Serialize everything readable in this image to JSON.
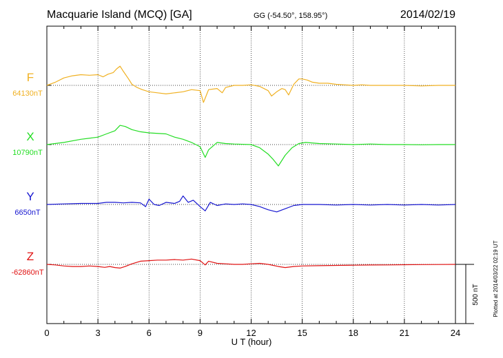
{
  "header": {
    "title": "Macquarie Island (MCQ)  [GA]",
    "coords": "GG (-54.50°, 158.95°)",
    "date": "2014/02/19"
  },
  "side_note": "Plotted at 2014/03/22 02:19 UT",
  "scale_bar": {
    "label": "500 nT",
    "value_nT": 500
  },
  "colors": {
    "F": "#f0b020",
    "X": "#22dd22",
    "Y": "#1515d0",
    "Z": "#e01010"
  },
  "chart_data": {
    "type": "line",
    "xlabel": "U T (hour)",
    "xlim": [
      0,
      24
    ],
    "x_ticks": [
      "0",
      "3",
      "6",
      "9",
      "12",
      "15",
      "18",
      "21",
      "24"
    ],
    "grid": "dotted baseline per series",
    "series": [
      {
        "name": "F",
        "baseline_label": "64130nT",
        "baseline_nT": 64130,
        "points": [
          [
            0,
            0
          ],
          [
            0.5,
            30
          ],
          [
            1,
            70
          ],
          [
            1.5,
            90
          ],
          [
            2,
            100
          ],
          [
            2.5,
            95
          ],
          [
            3,
            100
          ],
          [
            3.3,
            80
          ],
          [
            3.6,
            105
          ],
          [
            3.9,
            120
          ],
          [
            4.1,
            155
          ],
          [
            4.3,
            180
          ],
          [
            4.5,
            130
          ],
          [
            4.8,
            60
          ],
          [
            5,
            10
          ],
          [
            5.3,
            -20
          ],
          [
            5.6,
            -40
          ],
          [
            6,
            -60
          ],
          [
            6.5,
            -70
          ],
          [
            7,
            -80
          ],
          [
            7.5,
            -70
          ],
          [
            8,
            -60
          ],
          [
            8.5,
            -40
          ],
          [
            9,
            -50
          ],
          [
            9.2,
            -160
          ],
          [
            9.3,
            -120
          ],
          [
            9.5,
            -40
          ],
          [
            10,
            -30
          ],
          [
            10.3,
            -70
          ],
          [
            10.5,
            -20
          ],
          [
            11,
            0
          ],
          [
            11.5,
            0
          ],
          [
            12,
            5
          ],
          [
            12.5,
            -10
          ],
          [
            13,
            -50
          ],
          [
            13.2,
            -100
          ],
          [
            13.5,
            -60
          ],
          [
            13.8,
            -30
          ],
          [
            14,
            -40
          ],
          [
            14.2,
            -90
          ],
          [
            14.5,
            10
          ],
          [
            14.8,
            60
          ],
          [
            15,
            60
          ],
          [
            15.3,
            50
          ],
          [
            15.6,
            30
          ],
          [
            16,
            20
          ],
          [
            16.5,
            20
          ],
          [
            17,
            10
          ],
          [
            17.5,
            5
          ],
          [
            18,
            0
          ],
          [
            18.5,
            5
          ],
          [
            19,
            0
          ],
          [
            20,
            0
          ],
          [
            21,
            0
          ],
          [
            22,
            -5
          ],
          [
            23,
            0
          ],
          [
            24,
            0
          ]
        ]
      },
      {
        "name": "X",
        "baseline_label": "10790nT",
        "baseline_nT": 10790,
        "points": [
          [
            0,
            0
          ],
          [
            1,
            20
          ],
          [
            2,
            50
          ],
          [
            3,
            70
          ],
          [
            3.5,
            100
          ],
          [
            4,
            130
          ],
          [
            4.3,
            180
          ],
          [
            4.6,
            170
          ],
          [
            5,
            140
          ],
          [
            5.5,
            120
          ],
          [
            6,
            110
          ],
          [
            7,
            100
          ],
          [
            7.5,
            70
          ],
          [
            8,
            50
          ],
          [
            8.5,
            20
          ],
          [
            9,
            -20
          ],
          [
            9.3,
            -120
          ],
          [
            9.5,
            -50
          ],
          [
            10,
            20
          ],
          [
            10.5,
            10
          ],
          [
            11,
            5
          ],
          [
            12,
            0
          ],
          [
            12.5,
            -30
          ],
          [
            13,
            -90
          ],
          [
            13.3,
            -140
          ],
          [
            13.6,
            -200
          ],
          [
            14,
            -100
          ],
          [
            14.4,
            -30
          ],
          [
            14.8,
            10
          ],
          [
            15.2,
            20
          ],
          [
            16,
            10
          ],
          [
            17,
            5
          ],
          [
            18,
            0
          ],
          [
            19,
            5
          ],
          [
            20,
            0
          ],
          [
            21,
            0
          ],
          [
            22,
            -2
          ],
          [
            23,
            0
          ],
          [
            24,
            0
          ]
        ]
      },
      {
        "name": "Y",
        "baseline_label": "6650nT",
        "baseline_nT": 6650,
        "points": [
          [
            0,
            0
          ],
          [
            1,
            5
          ],
          [
            2,
            10
          ],
          [
            3,
            10
          ],
          [
            3.5,
            20
          ],
          [
            4,
            20
          ],
          [
            4.5,
            15
          ],
          [
            5,
            20
          ],
          [
            5.5,
            15
          ],
          [
            5.8,
            -20
          ],
          [
            6,
            50
          ],
          [
            6.3,
            0
          ],
          [
            6.6,
            -10
          ],
          [
            7,
            20
          ],
          [
            7.5,
            10
          ],
          [
            7.8,
            30
          ],
          [
            8,
            80
          ],
          [
            8.3,
            20
          ],
          [
            8.6,
            40
          ],
          [
            9,
            -20
          ],
          [
            9.3,
            -60
          ],
          [
            9.6,
            20
          ],
          [
            10,
            -10
          ],
          [
            10.5,
            5
          ],
          [
            11,
            0
          ],
          [
            11.5,
            5
          ],
          [
            12,
            0
          ],
          [
            12.5,
            -20
          ],
          [
            13,
            -50
          ],
          [
            13.5,
            -70
          ],
          [
            14,
            -40
          ],
          [
            14.5,
            -10
          ],
          [
            15,
            0
          ],
          [
            16,
            0
          ],
          [
            17,
            -5
          ],
          [
            18,
            0
          ],
          [
            19,
            -5
          ],
          [
            20,
            0
          ],
          [
            21,
            -5
          ],
          [
            22,
            0
          ],
          [
            23,
            -5
          ],
          [
            24,
            0
          ]
        ]
      },
      {
        "name": "Z",
        "baseline_label": "-62860nT",
        "baseline_nT": -62860,
        "points": [
          [
            0,
            0
          ],
          [
            0.5,
            -5
          ],
          [
            1,
            -15
          ],
          [
            1.5,
            -20
          ],
          [
            2,
            -20
          ],
          [
            2.5,
            -15
          ],
          [
            3,
            -20
          ],
          [
            3.4,
            -28
          ],
          [
            3.7,
            -20
          ],
          [
            4,
            -30
          ],
          [
            4.3,
            -35
          ],
          [
            4.6,
            -20
          ],
          [
            5,
            5
          ],
          [
            5.5,
            30
          ],
          [
            6,
            35
          ],
          [
            6.5,
            40
          ],
          [
            7,
            40
          ],
          [
            7.5,
            45
          ],
          [
            8,
            40
          ],
          [
            8.5,
            50
          ],
          [
            9,
            35
          ],
          [
            9.3,
            -5
          ],
          [
            9.5,
            30
          ],
          [
            10,
            10
          ],
          [
            10.5,
            5
          ],
          [
            11,
            0
          ],
          [
            11.5,
            0
          ],
          [
            12,
            5
          ],
          [
            12.5,
            10
          ],
          [
            13,
            0
          ],
          [
            13.3,
            -10
          ],
          [
            13.6,
            -20
          ],
          [
            14,
            -30
          ],
          [
            14.5,
            -20
          ],
          [
            15,
            -15
          ],
          [
            16,
            -12
          ],
          [
            17,
            -10
          ],
          [
            18,
            -8
          ],
          [
            19,
            -6
          ],
          [
            20,
            -5
          ],
          [
            21,
            -3
          ],
          [
            22,
            -2
          ],
          [
            23,
            -1
          ],
          [
            24,
            0
          ]
        ]
      }
    ]
  }
}
